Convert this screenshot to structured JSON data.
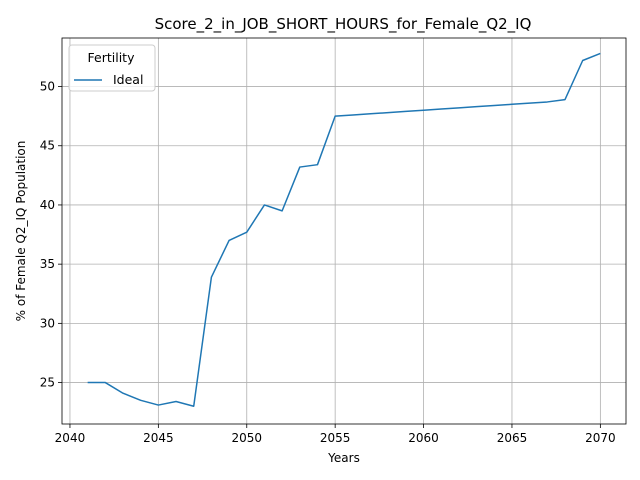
{
  "chart_data": {
    "type": "line",
    "title": "Score_2_in_JOB_SHORT_HOURS_for_Female_Q2_IQ",
    "xlabel": "Years",
    "ylabel": "% of Female Q2_IQ Population",
    "xlim": [
      2039.55,
      2071.45
    ],
    "ylim": [
      21.5,
      54.1
    ],
    "xticks": [
      2040,
      2045,
      2050,
      2055,
      2060,
      2065,
      2070
    ],
    "yticks": [
      25,
      30,
      35,
      40,
      45,
      50
    ],
    "grid": true,
    "legend": {
      "title": "Fertility",
      "position": "top-left"
    },
    "series": [
      {
        "name": "Ideal",
        "color": "#1f77b4",
        "x": [
          2041,
          2042,
          2043,
          2044,
          2045,
          2046,
          2047,
          2048,
          2049,
          2050,
          2051,
          2052,
          2053,
          2054,
          2055,
          2056,
          2057,
          2058,
          2059,
          2060,
          2061,
          2062,
          2063,
          2064,
          2065,
          2066,
          2067,
          2068,
          2069,
          2070
        ],
        "y": [
          25.0,
          25.0,
          24.1,
          23.5,
          23.1,
          23.4,
          23.0,
          33.9,
          37.0,
          37.7,
          40.0,
          39.5,
          43.2,
          43.4,
          47.5,
          47.6,
          47.7,
          47.8,
          47.9,
          48.0,
          48.1,
          48.2,
          48.3,
          48.4,
          48.5,
          48.6,
          48.7,
          48.9,
          52.2,
          52.8
        ]
      }
    ]
  }
}
